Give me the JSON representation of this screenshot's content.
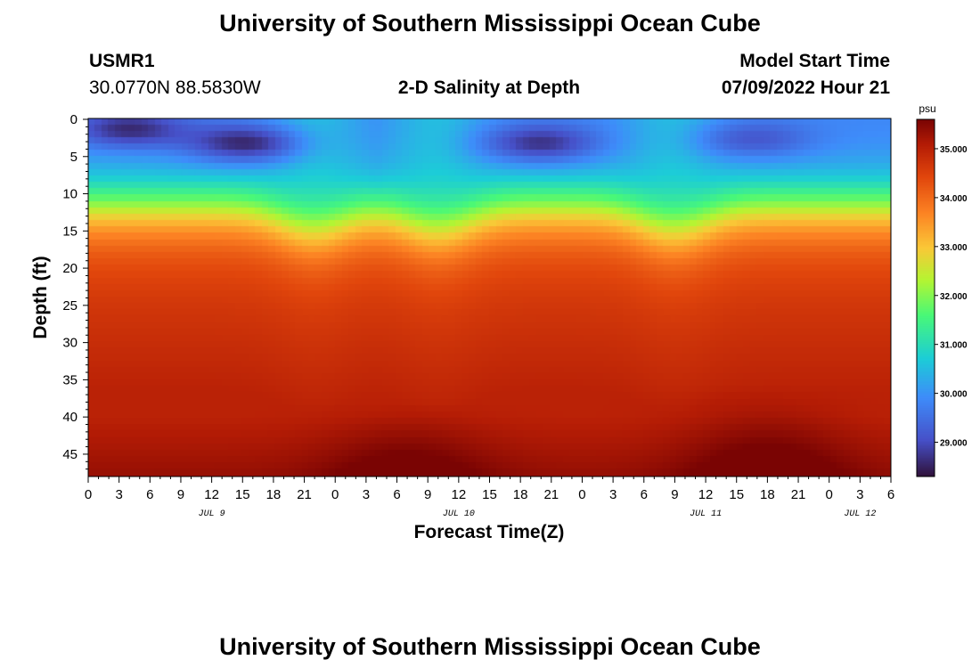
{
  "header": {
    "title": "University of Southern Mississippi Ocean Cube",
    "station_id": "USMR1",
    "coords": "30.0770N  88.5830W",
    "chart_title": "2-D Salinity at Depth",
    "model_start_label": "Model Start Time",
    "model_start_value": "07/09/2022 Hour 21"
  },
  "footer": {
    "title": "University of Southern Mississippi Ocean Cube"
  },
  "chart_data": {
    "type": "heatmap",
    "title": "2-D Salinity at Depth",
    "xlabel": "Forecast Time(Z)",
    "ylabel": "Depth (ft)",
    "x_range_hours": [
      0,
      78
    ],
    "y_range_ft": [
      0,
      48
    ],
    "x_tick_values": [
      0,
      3,
      6,
      9,
      12,
      15,
      18,
      21,
      24,
      27,
      30,
      33,
      36,
      39,
      42,
      45,
      48,
      51,
      54,
      57,
      60,
      63,
      66,
      69,
      72,
      75,
      78
    ],
    "x_tick_labels": [
      "0",
      "3",
      "6",
      "9",
      "12",
      "15",
      "18",
      "21",
      "0",
      "3",
      "6",
      "9",
      "12",
      "15",
      "18",
      "21",
      "0",
      "3",
      "6",
      "9",
      "12",
      "15",
      "18",
      "21",
      "0",
      "3",
      "6"
    ],
    "y_tick_values": [
      0,
      5,
      10,
      15,
      20,
      25,
      30,
      35,
      40,
      45
    ],
    "y_tick_labels": [
      "0",
      "5",
      "10",
      "15",
      "20",
      "25",
      "30",
      "35",
      "40",
      "45"
    ],
    "date_labels": [
      {
        "label": "JUL 9",
        "hour": 12
      },
      {
        "label": "JUL 10",
        "hour": 36
      },
      {
        "label": "JUL 11",
        "hour": 60
      },
      {
        "label": "JUL 12",
        "hour": 75
      }
    ],
    "colorbar": {
      "unit": "psu",
      "min": 28.3,
      "max": 35.6,
      "tick_values": [
        29,
        30,
        31,
        32,
        33,
        34,
        35
      ],
      "tick_labels": [
        "29.000",
        "30.000",
        "31.000",
        "32.000",
        "33.000",
        "34.000",
        "35.000"
      ]
    },
    "surface_lows": [
      {
        "hour": 4,
        "depth_ft": 1.5,
        "psu": 28.5
      },
      {
        "hour": 15,
        "depth_ft": 3.5,
        "psu": 28.4
      },
      {
        "hour": 44,
        "depth_ft": 3.5,
        "psu": 28.5
      },
      {
        "hour": 65,
        "depth_ft": 3,
        "psu": 29.0
      }
    ],
    "fresh_plume_hours": [
      22,
      34,
      57
    ],
    "deep_max_psu": 35.6
  }
}
